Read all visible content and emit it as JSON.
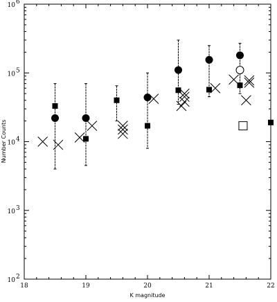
{
  "chart_data": {
    "type": "scatter",
    "title": "",
    "xlabel": "K magnitude",
    "ylabel": "Number Counts",
    "xlim": [
      18,
      22
    ],
    "ylim": [
      100,
      1000000
    ],
    "yscale": "log",
    "grid": false,
    "legend": "none",
    "x_ticks": [
      {
        "value": 18,
        "label": "18"
      },
      {
        "value": 19,
        "label": "19"
      },
      {
        "value": 20,
        "label": "20"
      },
      {
        "value": 21,
        "label": "21"
      },
      {
        "value": 22,
        "label": "22"
      }
    ],
    "y_ticks": [
      {
        "value": 100,
        "label": "10",
        "exp": "2"
      },
      {
        "value": 1000,
        "label": "10",
        "exp": "3"
      },
      {
        "value": 10000,
        "label": "10",
        "exp": "4"
      },
      {
        "value": 100000,
        "label": "10",
        "exp": "5"
      },
      {
        "value": 1000000,
        "label": "10",
        "exp": "6"
      }
    ],
    "series": [
      {
        "marker": "filled-circle",
        "points": [
          {
            "x": 18.5,
            "y": 22000,
            "ylo": 4000,
            "yhi": 70000
          },
          {
            "x": 19.0,
            "y": 22000,
            "ylo": 4500,
            "yhi": 70000
          },
          {
            "x": 20.0,
            "y": 44000,
            "ylo": 8000,
            "yhi": 100000
          },
          {
            "x": 20.5,
            "y": 110000,
            "ylo": 35000,
            "yhi": 300000
          },
          {
            "x": 21.0,
            "y": 155000,
            "ylo": 45000,
            "yhi": 250000
          },
          {
            "x": 21.5,
            "y": 180000,
            "ylo": 50000,
            "yhi": 270000
          }
        ]
      },
      {
        "marker": "filled-square",
        "points": [
          {
            "x": 18.5,
            "y": 33000
          },
          {
            "x": 19.0,
            "y": 11000
          },
          {
            "x": 19.5,
            "y": 40000,
            "ylo": 20000,
            "yhi": 65000
          },
          {
            "x": 20.0,
            "y": 17000
          },
          {
            "x": 20.5,
            "y": 56000
          },
          {
            "x": 21.0,
            "y": 57000
          },
          {
            "x": 21.5,
            "y": 66000
          },
          {
            "x": 22.0,
            "y": 19000
          }
        ]
      },
      {
        "marker": "cross",
        "points": [
          {
            "x": 18.3,
            "y": 10000
          },
          {
            "x": 18.55,
            "y": 9000
          },
          {
            "x": 18.9,
            "y": 11500
          },
          {
            "x": 19.1,
            "y": 17000
          },
          {
            "x": 19.6,
            "y": 13000
          },
          {
            "x": 19.6,
            "y": 15000
          },
          {
            "x": 19.6,
            "y": 17000
          },
          {
            "x": 20.1,
            "y": 42000
          },
          {
            "x": 20.55,
            "y": 33000
          },
          {
            "x": 20.6,
            "y": 38000
          },
          {
            "x": 20.6,
            "y": 45000
          },
          {
            "x": 20.6,
            "y": 50000
          },
          {
            "x": 21.1,
            "y": 60000
          },
          {
            "x": 21.4,
            "y": 80000
          },
          {
            "x": 21.6,
            "y": 40000
          },
          {
            "x": 21.65,
            "y": 72000
          },
          {
            "x": 21.65,
            "y": 78000
          }
        ]
      },
      {
        "marker": "open-circle",
        "points": [
          {
            "x": 21.5,
            "y": 110000
          }
        ]
      },
      {
        "marker": "open-square",
        "points": [
          {
            "x": 21.55,
            "y": 17000
          }
        ]
      }
    ]
  }
}
